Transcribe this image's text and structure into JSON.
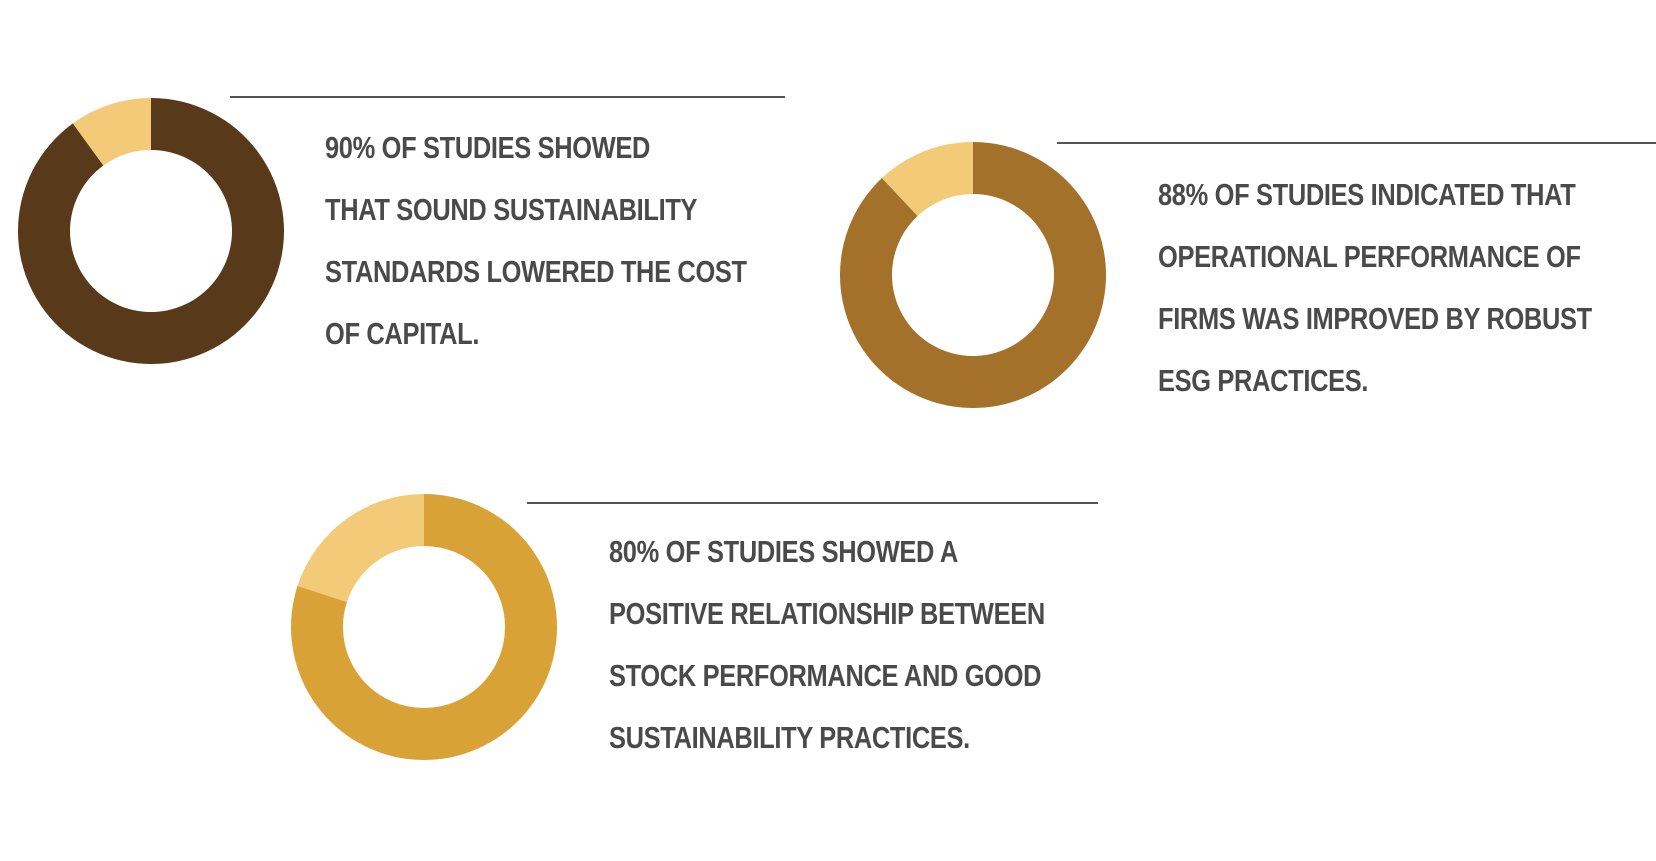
{
  "chart_data": [
    {
      "type": "pie",
      "variant": "donut",
      "slices": [
        {
          "value": 90,
          "color": "#58391A"
        },
        {
          "value": 10,
          "color": "#F2CA78"
        }
      ],
      "caption_lines": [
        "90% OF STUDIES SHOWED",
        "THAT SOUND SUSTAINABILITY",
        "STANDARDS LOWERED THE COST",
        "OF CAPITAL."
      ]
    },
    {
      "type": "pie",
      "variant": "donut",
      "slices": [
        {
          "value": 88,
          "color": "#A37129"
        },
        {
          "value": 12,
          "color": "#F2CA78"
        }
      ],
      "caption_lines": [
        "88% OF STUDIES INDICATED THAT",
        "OPERATIONAL PERFORMANCE OF",
        "FIRMS WAS IMPROVED BY ROBUST",
        "ESG PRACTICES."
      ]
    },
    {
      "type": "pie",
      "variant": "donut",
      "slices": [
        {
          "value": 80,
          "color": "#D8A237"
        },
        {
          "value": 20,
          "color": "#F2CA78"
        }
      ],
      "caption_lines": [
        "80% OF STUDIES SHOWED A",
        "POSITIVE RELATIONSHIP BETWEEN",
        "STOCK PERFORMANCE AND GOOD",
        "SUSTAINABILITY PRACTICES."
      ]
    }
  ]
}
